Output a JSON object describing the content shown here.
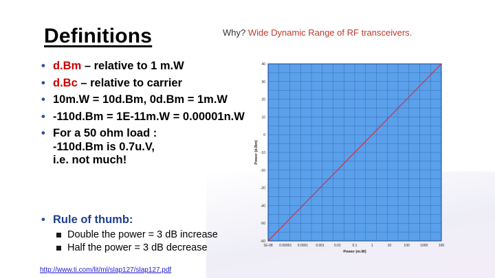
{
  "slide": {
    "title": "Definitions",
    "subtitle_prefix": "Why?",
    "subtitle_accent": "Wide Dynamic Range of RF transceivers.",
    "bullets": [
      {
        "parts": [
          {
            "text": "d.Bm",
            "red": true
          },
          {
            "text": " – relative to 1 m.W",
            "red": false
          }
        ]
      },
      {
        "parts": [
          {
            "text": "d.Bc",
            "red": true
          },
          {
            "text": " – relative to carrier",
            "red": false
          }
        ]
      },
      {
        "parts": [
          {
            "text": "10m.W = 10d.Bm, 0d.Bm = 1m.W",
            "red": false
          }
        ]
      },
      {
        "parts": [
          {
            "text": "-110d.Bm = 1E-11m.W =  0.00001n.W",
            "red": false
          }
        ]
      }
    ],
    "load_bullet": [
      "For a 50 ohm load :",
      "-110d.Bm is 0.7u.V,",
      "i.e. not much!"
    ],
    "rule_heading": "Rule of thumb:",
    "rule_items": [
      "Double the power = 3 dB increase",
      "Half the power = 3 dB decrease"
    ],
    "link": "http://www.ti.com/lit/ml/slap127/slap127.pdf"
  },
  "chart_data": {
    "type": "line",
    "x_scale": "log",
    "xlabel": "Power (m.W)",
    "ylabel": "Power (d.Bm)",
    "x_ticks": [
      "1E-08",
      "0.00001",
      "0.0001",
      "0.001",
      "0.01",
      "0.1",
      "1",
      "10",
      "100",
      "1000",
      "100"
    ],
    "y_ticks": [
      40,
      30,
      20,
      10,
      0,
      -10,
      -20,
      -30,
      -40,
      -50,
      -60
    ],
    "ylim": [
      -60,
      40
    ],
    "grid": true,
    "series": [
      {
        "x": [
          1e-07,
          10000
        ],
        "y": [
          -60,
          40
        ]
      }
    ],
    "colors": {
      "plot_bg": "#5aa0ea",
      "grid": "#1d3f80",
      "line": "#e0243a"
    }
  }
}
